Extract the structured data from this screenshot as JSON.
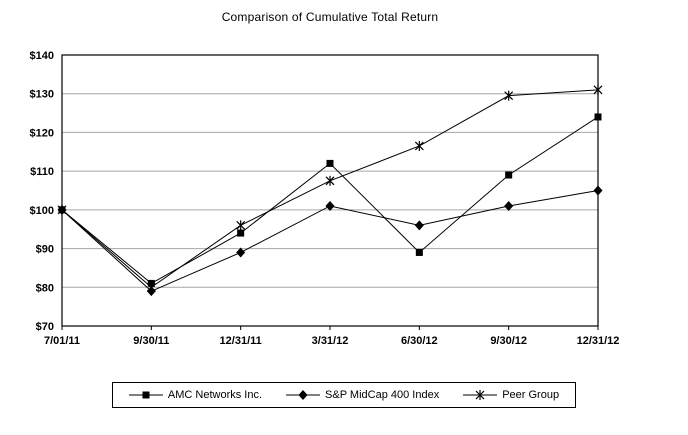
{
  "chart_data": {
    "type": "line",
    "title": "Comparison of Cumulative Total Return",
    "x": [
      "7/01/11",
      "9/30/11",
      "12/31/11",
      "3/31/12",
      "6/30/12",
      "9/30/12",
      "12/31/12"
    ],
    "series": [
      {
        "name": "AMC Networks Inc.",
        "marker": "square",
        "values": [
          100,
          81,
          94,
          112,
          89,
          109,
          124
        ]
      },
      {
        "name": "S&P MidCap 400 Index",
        "marker": "diamond",
        "values": [
          100,
          79,
          89,
          101,
          96,
          101,
          105
        ]
      },
      {
        "name": "Peer Group",
        "marker": "asterisk",
        "values": [
          100,
          80,
          96,
          107.5,
          116.5,
          129.5,
          131
        ]
      }
    ],
    "ylim": [
      70,
      140
    ],
    "ytick_step": 10,
    "ytick_prefix": "$",
    "grid": "horizontal",
    "legend_position": "bottom",
    "colors": {
      "series_line": "#000000",
      "marker_fill": "#000000",
      "grid_line": "#a6a6a6",
      "plot_border": "#000000",
      "background": "#ffffff",
      "text": "#000000"
    }
  }
}
